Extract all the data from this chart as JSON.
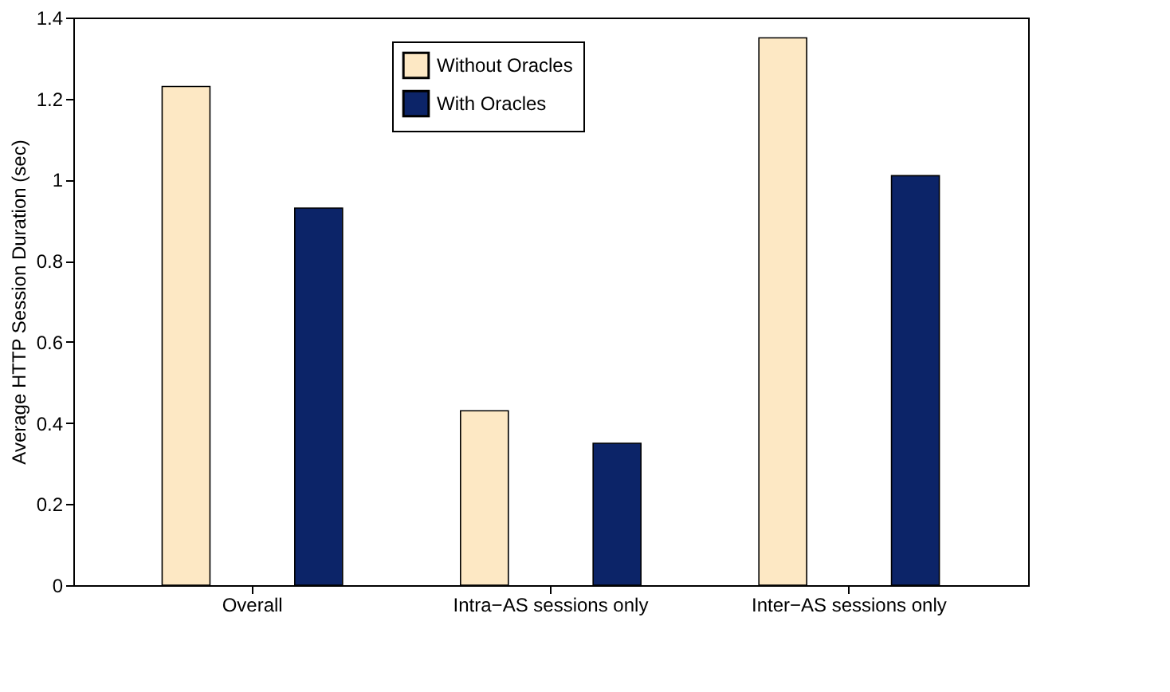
{
  "chart_data": {
    "type": "bar",
    "ylabel": "Average HTTP Session Duration (sec)",
    "categories": [
      "Overall",
      "Intra−AS sessions only",
      "Inter−AS sessions only"
    ],
    "series": [
      {
        "name": "Without Oracles",
        "color": "#fde8c4",
        "values": [
          1.23,
          0.43,
          1.35
        ]
      },
      {
        "name": "With Oracles",
        "color": "#0c2468",
        "values": [
          0.93,
          0.35,
          1.01
        ]
      }
    ],
    "ylim": [
      0,
      1.4
    ],
    "yticks": [
      0,
      0.2,
      0.4,
      0.6,
      0.8,
      1,
      1.2,
      1.4
    ],
    "grid": false,
    "legend": "top"
  }
}
